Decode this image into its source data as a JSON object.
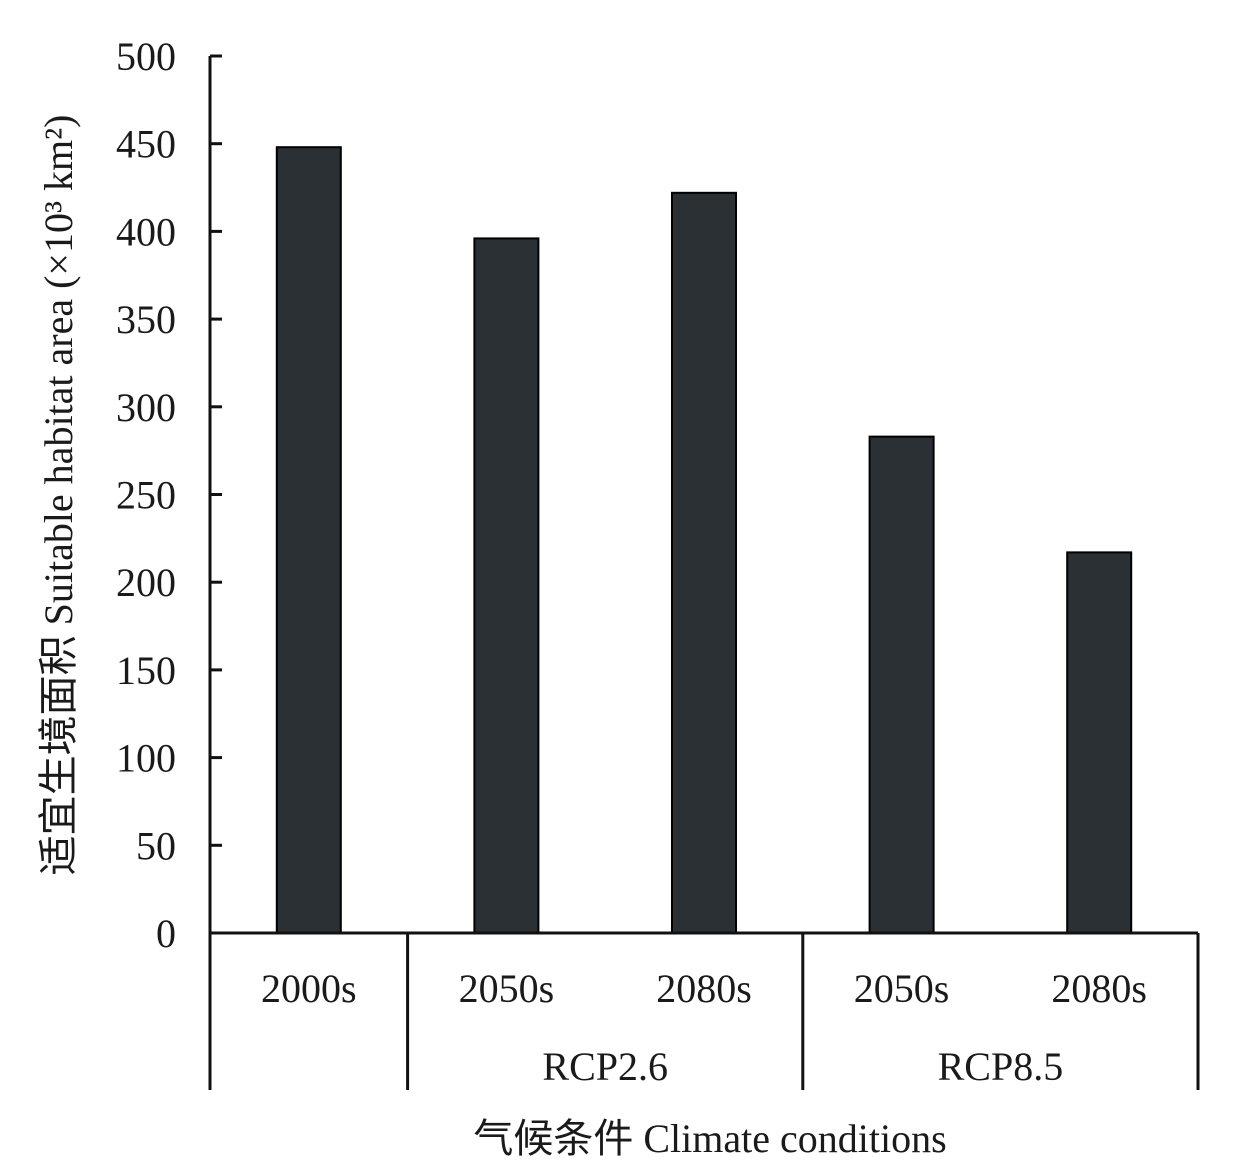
{
  "chart_data": {
    "type": "bar",
    "xlabel": "气候条件 Climate conditions",
    "ylabel": "适宜生境面积 Suitable habitat area (×10³ km²)",
    "ylim": [
      0,
      500
    ],
    "yticks": [
      0,
      50,
      100,
      150,
      200,
      250,
      300,
      350,
      400,
      450,
      500
    ],
    "categories": [
      "2000s",
      "2050s",
      "2080s",
      "2050s",
      "2080s"
    ],
    "values": [
      448,
      396,
      422,
      283,
      217
    ],
    "groups": [
      {
        "label": "",
        "span": [
          0,
          0
        ]
      },
      {
        "label": "RCP2.6",
        "span": [
          1,
          2
        ]
      },
      {
        "label": "RCP8.5",
        "span": [
          3,
          4
        ]
      }
    ],
    "bar_color": "#2b3035",
    "grid": false,
    "legend": "none"
  }
}
